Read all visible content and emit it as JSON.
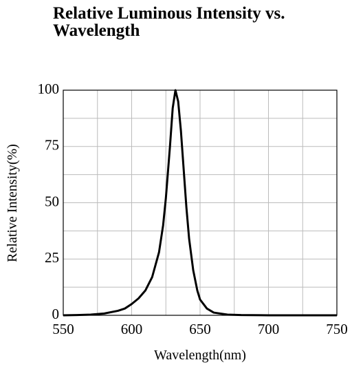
{
  "chart_data": {
    "type": "line",
    "title": "Relative Luminous Intensity vs.",
    "subtitle": "Wavelength",
    "x_label": "Wavelength(nm)",
    "y_label": "Relative Intensity(%)",
    "x": [
      550,
      560,
      570,
      580,
      590,
      595,
      600,
      605,
      610,
      615,
      620,
      623,
      625,
      628,
      630,
      632,
      634,
      636,
      638,
      640,
      642,
      645,
      648,
      650,
      655,
      660,
      670,
      680,
      700,
      750
    ],
    "series": [
      {
        "name": "Relative Intensity",
        "color": "#000000",
        "values": [
          0,
          0.1,
          0.3,
          0.8,
          2,
          3,
          5,
          7.5,
          11,
          17,
          28,
          40,
          52,
          75,
          92,
          100,
          95,
          82,
          65,
          48,
          34,
          20,
          11,
          7,
          3,
          1.2,
          0.3,
          0.1,
          0,
          0
        ]
      }
    ],
    "xlim": [
      550,
      750
    ],
    "xticks": [
      550,
      600,
      650,
      700,
      750
    ],
    "ylim": [
      0,
      100
    ],
    "yticks": [
      0,
      25,
      50,
      75,
      100
    ],
    "minor_xticks": [
      575,
      625,
      675,
      725
    ],
    "minor_yticks": [
      12.5,
      37.5,
      62.5,
      87.5
    ],
    "grid": true
  }
}
